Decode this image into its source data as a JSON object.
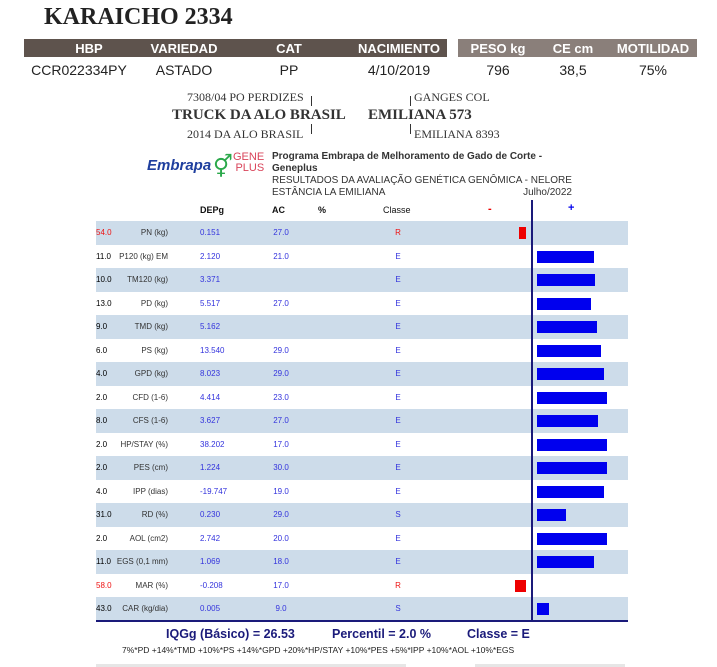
{
  "title": "KARAICHO 2334",
  "header": {
    "columns": [
      "HBP",
      "VARIEDAD",
      "CAT",
      "NACIMIENTO",
      "PESO kg",
      "CE cm",
      "MOTILIDAD"
    ],
    "values": [
      "CCR022334PY",
      "ASTADO",
      "PP",
      "4/10/2019",
      "796",
      "38,5",
      "75%"
    ]
  },
  "pedigree": {
    "sire": "TRUCK DA ALO BRASIL",
    "sire_sire": "7308/04 PO PERDIZES",
    "sire_dam": "2014 DA ALO BRASIL",
    "dam": "EMILIANA 573",
    "dam_sire": "GANGES COL",
    "dam_dam": "EMILIANA 8393"
  },
  "program": {
    "logo1": "Embrapa",
    "logo2_line1": "GENE",
    "logo2_line2": "PLUS",
    "line1": "Programa Embrapa de Melhoramento de Gado de Corte - Geneplus",
    "line2": "RESULTADOS DA AVALIAÇÃO GENÉTICA GENÔMICA - NELORE",
    "line3": "ESTÂNCIA LA EMILIANA",
    "date": "Julho/2022"
  },
  "table": {
    "headers": {
      "dep": "DEPg",
      "ac": "AC",
      "pct": "%",
      "classe": "Classe",
      "minus": "-",
      "plus": "+"
    },
    "colors": {
      "positive": "#0000ee",
      "negative": "#ee0000",
      "row_alt": "#cddcea"
    },
    "rows": [
      {
        "label": "PN (kg)",
        "dep": "0.151",
        "ac": "27.0",
        "pct": "54.0",
        "classe": "R",
        "bar": -0.1
      },
      {
        "label": "P120 (kg) EM",
        "dep": "2.120",
        "ac": "21.0",
        "pct": "11.0",
        "classe": "E",
        "bar": 0.81
      },
      {
        "label": "TM120 (kg)",
        "dep": "3.371",
        "ac": "",
        "pct": "10.0",
        "classe": "E",
        "bar": 0.83
      },
      {
        "label": "PD (kg)",
        "dep": "5.517",
        "ac": "27.0",
        "pct": "13.0",
        "classe": "E",
        "bar": 0.77
      },
      {
        "label": "TMD (kg)",
        "dep": "5.162",
        "ac": "",
        "pct": "9.0",
        "classe": "E",
        "bar": 0.86
      },
      {
        "label": "PS (kg)",
        "dep": "13.540",
        "ac": "29.0",
        "pct": "6.0",
        "classe": "E",
        "bar": 0.91
      },
      {
        "label": "GPD (kg)",
        "dep": "8.023",
        "ac": "29.0",
        "pct": "4.0",
        "classe": "E",
        "bar": 0.96
      },
      {
        "label": "CFD (1-6)",
        "dep": "4.414",
        "ac": "23.0",
        "pct": "2.0",
        "classe": "E",
        "bar": 1.0
      },
      {
        "label": "CFS (1-6)",
        "dep": "3.627",
        "ac": "27.0",
        "pct": "8.0",
        "classe": "E",
        "bar": 0.87
      },
      {
        "label": "HP/STAY (%)",
        "dep": "38.202",
        "ac": "17.0",
        "pct": "2.0",
        "classe": "E",
        "bar": 1.0
      },
      {
        "label": "PES (cm)",
        "dep": "1.224",
        "ac": "30.0",
        "pct": "2.0",
        "classe": "E",
        "bar": 1.0
      },
      {
        "label": "IPP (dias)",
        "dep": "-19.747",
        "ac": "19.0",
        "pct": "4.0",
        "classe": "E",
        "bar": 0.96
      },
      {
        "label": "RD (%)",
        "dep": "0.230",
        "ac": "29.0",
        "pct": "31.0",
        "classe": "S",
        "bar": 0.41
      },
      {
        "label": "AOL (cm2)",
        "dep": "2.742",
        "ac": "20.0",
        "pct": "2.0",
        "classe": "E",
        "bar": 1.0
      },
      {
        "label": "EGS (0,1 mm)",
        "dep": "1.069",
        "ac": "18.0",
        "pct": "11.0",
        "classe": "E",
        "bar": 0.81
      },
      {
        "label": "MAR (%)",
        "dep": "-0.208",
        "ac": "17.0",
        "pct": "58.0",
        "classe": "R",
        "bar": -0.16
      },
      {
        "label": "CAR (kg/dia)",
        "dep": "0.005",
        "ac": "9.0",
        "pct": "43.0",
        "classe": "S",
        "bar": 0.17
      }
    ]
  },
  "summary": {
    "iqg": "IQGg (Básico) = 26.53",
    "percentil": "Percentil =  2.0 %",
    "classe": "Classe = E",
    "formula": "7%*PD +14%*TMD +10%*PS +14%*GPD +20%*HP/STAY +10%*PES +5%*IPP +10%*AOL +10%*EGS"
  }
}
